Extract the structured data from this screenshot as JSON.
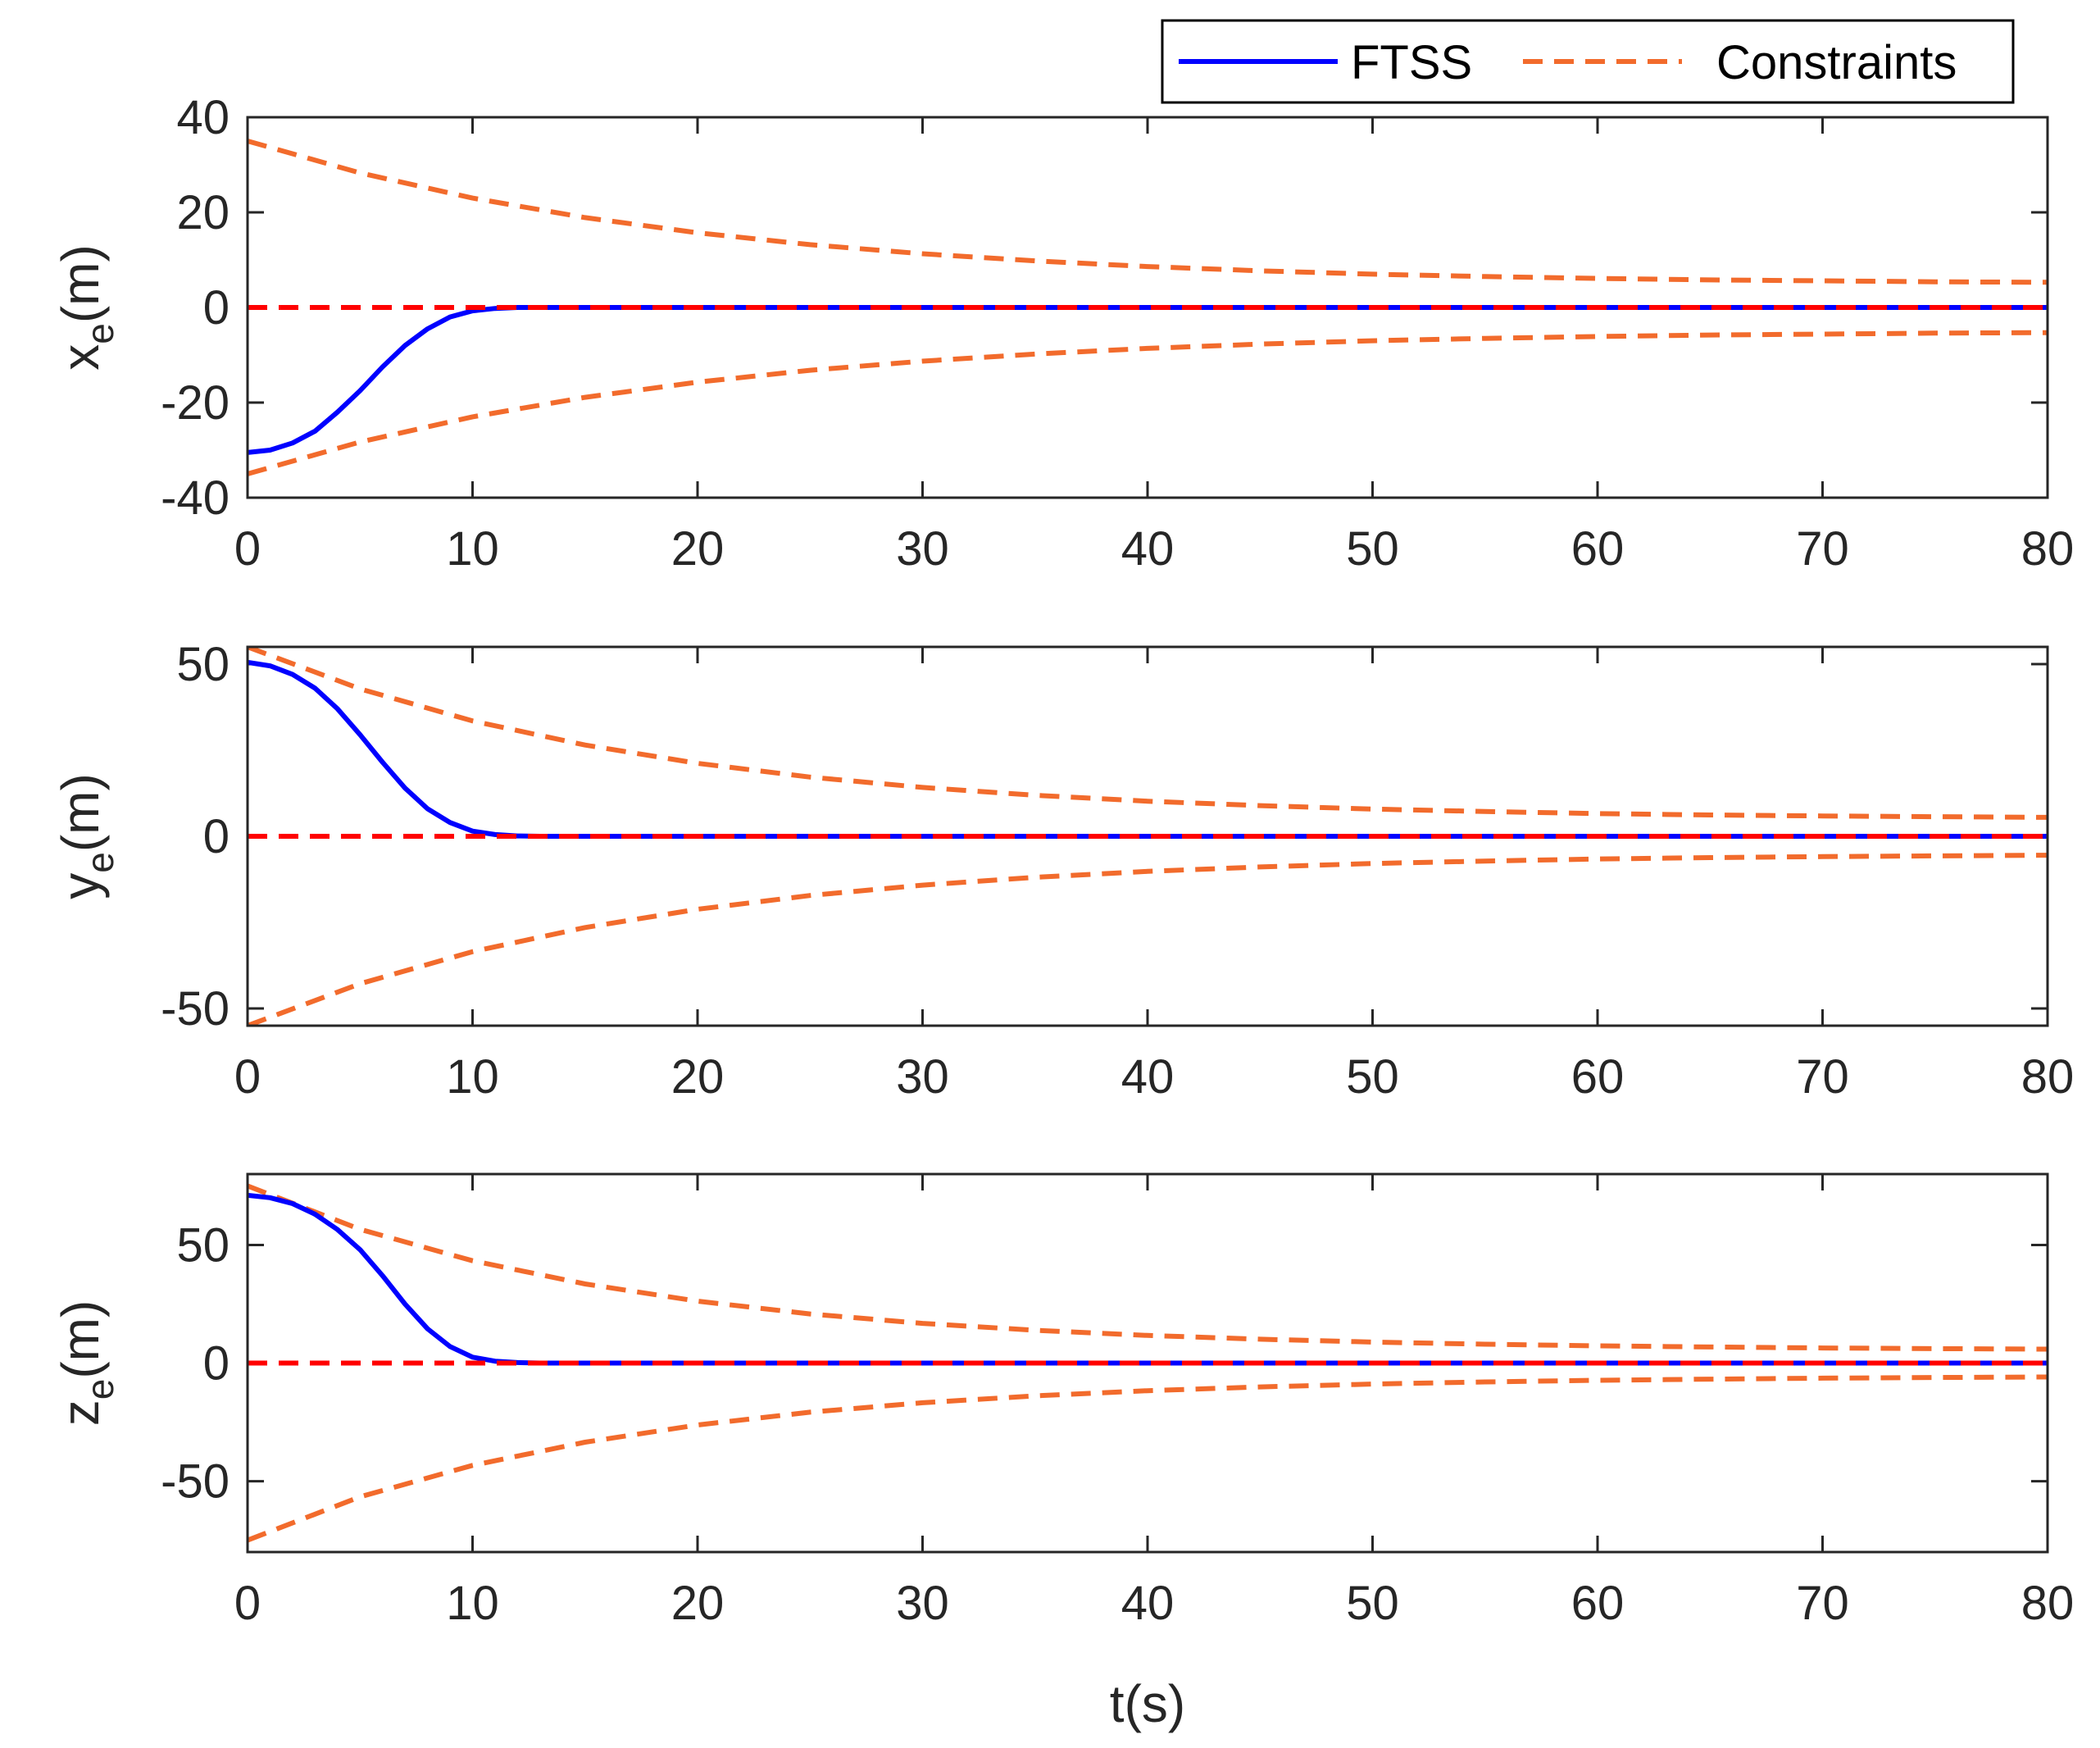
{
  "figure": {
    "xlabel": "t(s)",
    "legend": {
      "placement": "top-right",
      "entries": [
        {
          "label": "FTSS",
          "color": "#0000ff",
          "style": "solid"
        },
        {
          "label": "Constraints",
          "color": "#f26b2c",
          "style": "dashed"
        }
      ]
    }
  },
  "chart_data": [
    {
      "type": "line",
      "ylabel_base": "x",
      "ylabel_sub": "e",
      "ylabel_unit": "(m)",
      "xlim": [
        0,
        80
      ],
      "ylim": [
        -40,
        40
      ],
      "xticks": [
        0,
        10,
        20,
        30,
        40,
        50,
        60,
        70,
        80
      ],
      "yticks": [
        -40,
        -20,
        0,
        20,
        40
      ],
      "series": [
        {
          "name": "FTSS",
          "color": "#0000ff",
          "style": "solid",
          "x": [
            0,
            1,
            2,
            3,
            4,
            5,
            6,
            7,
            8,
            9,
            10,
            11,
            12,
            14,
            80
          ],
          "y": [
            -30.5,
            -30,
            -28.5,
            -26,
            -22,
            -17.5,
            -12.5,
            -8,
            -4.5,
            -2,
            -0.7,
            -0.2,
            0,
            0,
            0
          ]
        },
        {
          "name": "Constraints (upper)",
          "color": "#f26b2c",
          "style": "dashed",
          "x": [
            0,
            5,
            10,
            15,
            20,
            25,
            30,
            35,
            40,
            45,
            50,
            55,
            60,
            65,
            70,
            75,
            80
          ],
          "y": [
            35,
            28.3,
            23,
            18.9,
            15.7,
            13.2,
            11.3,
            9.8,
            8.6,
            7.7,
            7.0,
            6.5,
            6.1,
            5.8,
            5.6,
            5.4,
            5.3
          ]
        },
        {
          "name": "Constraints (lower)",
          "color": "#f26b2c",
          "style": "dashed",
          "x": [
            0,
            5,
            10,
            15,
            20,
            25,
            30,
            35,
            40,
            45,
            50,
            55,
            60,
            65,
            70,
            75,
            80
          ],
          "y": [
            -35,
            -28.3,
            -23,
            -18.9,
            -15.7,
            -13.2,
            -11.3,
            -9.8,
            -8.6,
            -7.7,
            -7.0,
            -6.5,
            -6.1,
            -5.8,
            -5.6,
            -5.4,
            -5.3
          ]
        },
        {
          "name": "Reference",
          "color": "#ff0000",
          "style": "dashed",
          "x": [
            0,
            80
          ],
          "y": [
            0,
            0
          ]
        }
      ]
    },
    {
      "type": "line",
      "ylabel_base": "y",
      "ylabel_sub": "e",
      "ylabel_unit": "(m)",
      "xlim": [
        0,
        80
      ],
      "ylim": [
        -55,
        55
      ],
      "xticks": [
        0,
        10,
        20,
        30,
        40,
        50,
        60,
        70,
        80
      ],
      "yticks": [
        -50,
        0,
        50
      ],
      "series": [
        {
          "name": "FTSS",
          "color": "#0000ff",
          "style": "solid",
          "x": [
            0,
            1,
            2,
            3,
            4,
            5,
            6,
            7,
            8,
            9,
            10,
            11,
            12,
            13,
            80
          ],
          "y": [
            50.5,
            49.5,
            47,
            43,
            37,
            29.5,
            21.5,
            14,
            8,
            4,
            1.5,
            0.5,
            0.1,
            0,
            0
          ]
        },
        {
          "name": "Constraints (upper)",
          "color": "#f26b2c",
          "style": "dashed",
          "x": [
            0,
            5,
            10,
            15,
            20,
            25,
            30,
            35,
            40,
            45,
            50,
            55,
            60,
            65,
            70,
            75,
            80
          ],
          "y": [
            55,
            42.8,
            33.5,
            26.5,
            21.2,
            17.2,
            14.2,
            11.9,
            10.2,
            8.9,
            7.9,
            7.2,
            6.6,
            6.2,
            5.9,
            5.7,
            5.5
          ]
        },
        {
          "name": "Constraints (lower)",
          "color": "#f26b2c",
          "style": "dashed",
          "x": [
            0,
            5,
            10,
            15,
            20,
            25,
            30,
            35,
            40,
            45,
            50,
            55,
            60,
            65,
            70,
            75,
            80
          ],
          "y": [
            -55,
            -42.8,
            -33.5,
            -26.5,
            -21.2,
            -17.2,
            -14.2,
            -11.9,
            -10.2,
            -8.9,
            -7.9,
            -7.2,
            -6.6,
            -6.2,
            -5.9,
            -5.7,
            -5.5
          ]
        },
        {
          "name": "Reference",
          "color": "#ff0000",
          "style": "dashed",
          "x": [
            0,
            80
          ],
          "y": [
            0,
            0
          ]
        }
      ]
    },
    {
      "type": "line",
      "ylabel_base": "z",
      "ylabel_sub": "e",
      "ylabel_unit": "(m)",
      "xlim": [
        0,
        80
      ],
      "ylim": [
        -80,
        80
      ],
      "xticks": [
        0,
        10,
        20,
        30,
        40,
        50,
        60,
        70,
        80
      ],
      "yticks": [
        -50,
        0,
        50
      ],
      "series": [
        {
          "name": "FTSS",
          "color": "#0000ff",
          "style": "solid",
          "x": [
            0,
            1,
            2,
            3,
            4,
            5,
            6,
            7,
            8,
            9,
            10,
            11,
            12,
            13,
            80
          ],
          "y": [
            71,
            70,
            67.5,
            63,
            56.5,
            48,
            37,
            25,
            14.5,
            7,
            2.5,
            0.8,
            0.2,
            0,
            0
          ]
        },
        {
          "name": "Constraints (upper)",
          "color": "#f26b2c",
          "style": "dashed",
          "x": [
            0,
            5,
            10,
            15,
            20,
            25,
            30,
            35,
            40,
            45,
            50,
            55,
            60,
            65,
            70,
            75,
            80
          ],
          "y": [
            75,
            56.6,
            43.3,
            33.5,
            26.2,
            20.8,
            16.8,
            13.9,
            11.7,
            10.1,
            8.9,
            8.0,
            7.3,
            6.8,
            6.4,
            6.1,
            5.9
          ]
        },
        {
          "name": "Constraints (lower)",
          "color": "#f26b2c",
          "style": "dashed",
          "x": [
            0,
            5,
            10,
            15,
            20,
            25,
            30,
            35,
            40,
            45,
            50,
            55,
            60,
            65,
            70,
            75,
            80
          ],
          "y": [
            -75,
            -56.6,
            -43.3,
            -33.5,
            -26.2,
            -20.8,
            -16.8,
            -13.9,
            -11.7,
            -10.1,
            -8.9,
            -8.0,
            -7.3,
            -6.8,
            -6.4,
            -6.1,
            -5.9
          ]
        },
        {
          "name": "Reference",
          "color": "#ff0000",
          "style": "dashed",
          "x": [
            0,
            80
          ],
          "y": [
            0,
            0
          ]
        }
      ]
    }
  ]
}
